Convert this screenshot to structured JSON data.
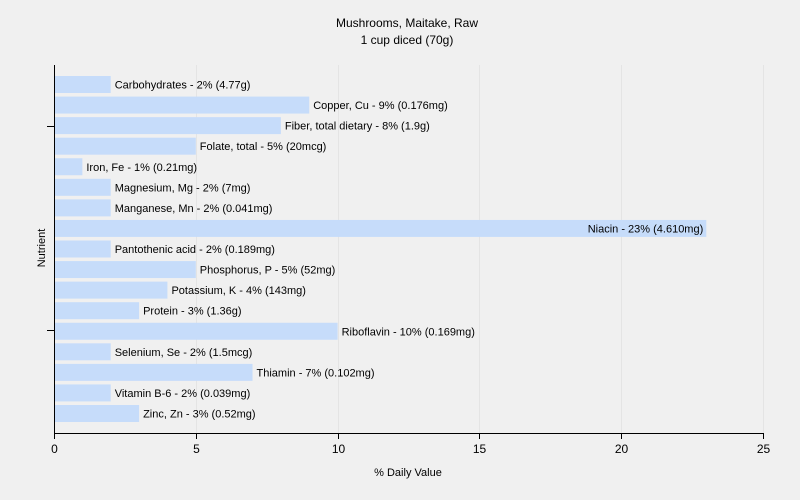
{
  "chart_data": {
    "type": "bar",
    "orientation": "horizontal",
    "title": "Mushrooms, Maitake, Raw",
    "subtitle": "1 cup diced (70g)",
    "xlabel": "% Daily Value",
    "ylabel": "Nutrient",
    "xlim": [
      0,
      25
    ],
    "xticks": [
      0,
      5,
      10,
      15,
      20,
      25
    ],
    "grid": true,
    "bar_color": "#c6dcfa",
    "categories": [
      "Carbohydrates",
      "Copper, Cu",
      "Fiber, total dietary",
      "Folate, total",
      "Iron, Fe",
      "Magnesium, Mg",
      "Manganese, Mn",
      "Niacin",
      "Pantothenic acid",
      "Phosphorus, P",
      "Potassium, K",
      "Protein",
      "Riboflavin",
      "Selenium, Se",
      "Thiamin",
      "Vitamin B-6",
      "Zinc, Zn"
    ],
    "values": [
      2,
      9,
      8,
      5,
      1,
      2,
      2,
      23,
      2,
      5,
      4,
      3,
      10,
      2,
      7,
      2,
      3
    ],
    "labels": [
      "Carbohydrates - 2% (4.77g)",
      "Copper, Cu - 9% (0.176mg)",
      "Fiber, total dietary - 8% (1.9g)",
      "Folate, total - 5% (20mcg)",
      "Iron, Fe - 1% (0.21mg)",
      "Magnesium, Mg - 2% (7mg)",
      "Manganese, Mn - 2% (0.041mg)",
      "Niacin - 23% (4.610mg)",
      "Pantothenic acid - 2% (0.189mg)",
      "Phosphorus, P - 5% (52mg)",
      "Potassium, K - 4% (143mg)",
      "Protein - 3% (1.36g)",
      "Riboflavin - 10% (0.169mg)",
      "Selenium, Se - 2% (1.5mcg)",
      "Thiamin - 7% (0.102mg)",
      "Vitamin B-6 - 2% (0.039mg)",
      "Zinc, Zn - 3% (0.52mg)"
    ]
  }
}
